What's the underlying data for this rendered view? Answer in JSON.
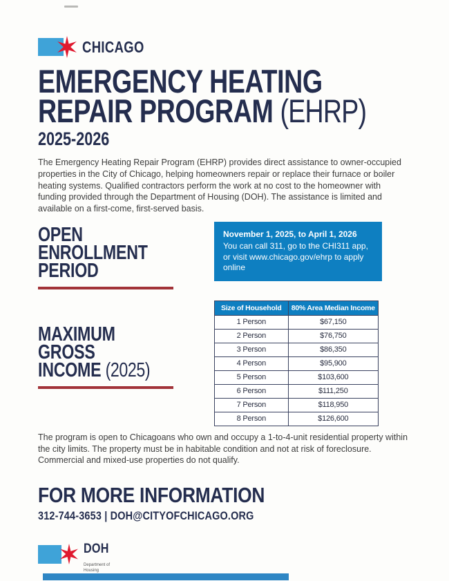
{
  "header": {
    "brand": "CHICAGO",
    "title_line1": "EMERGENCY HEATING",
    "title_line2_main": "REPAIR PROGRAM",
    "title_line2_suffix": "(EHRP)",
    "years": "2025-2026"
  },
  "intro": "The Emergency Heating Repair Program (EHRP) provides direct assistance to owner-occupied properties in the City of Chicago, helping homeowners repair or replace their furnace or boiler heating systems. Qualified contractors perform the work at no cost to the homeowner with funding provided through the Department of Housing (DOH).  The assistance is limited and available on a first-come, first-served basis.",
  "enrollment": {
    "heading_lines": [
      "OPEN",
      "ENROLLMENT",
      "PERIOD"
    ],
    "dates": "November 1, 2025, to April 1, 2026",
    "instructions": "You can call 311, go to the CHI311 app, or visit www.chicago.gov/ehrp to apply online"
  },
  "income": {
    "heading_line1": "MAXIMUM",
    "heading_line2": "GROSS",
    "heading_line3": "INCOME",
    "heading_suffix": "(2025)"
  },
  "income_table": {
    "headers": [
      "Size of Household",
      "80% Area Median Income"
    ],
    "rows": [
      [
        "1 Person",
        "$67,150"
      ],
      [
        "2 Person",
        "$76,750"
      ],
      [
        "3 Person",
        "$86,350"
      ],
      [
        "4 Person",
        "$95,900"
      ],
      [
        "5 Person",
        "$103,600"
      ],
      [
        "6 Person",
        "$111,250"
      ],
      [
        "7 Person",
        "$118,950"
      ],
      [
        "8 Person",
        "$126,600"
      ]
    ]
  },
  "eligibility": "The program is open to Chicagoans who own and occupy a 1-to-4-unit residential property within the city limits.  The property must be in habitable condition and not at risk of foreclosure. Commercial and mixed-use properties do not qualify.",
  "footer": {
    "heading": "FOR MORE INFORMATION",
    "contact": "312-744-3653 | DOH@CITYOFCHICAGO.ORG",
    "logo_text": "DOH",
    "logo_subtext_line1": "Department of",
    "logo_subtext_line2": "Housing"
  },
  "colors": {
    "navy": "#242d4e",
    "blue": "#0e7fc1",
    "light_blue": "#3fa3d8",
    "red": "#e0192f",
    "dark_red": "#a23339",
    "text": "#3b3b3b",
    "table_border": "#39415f",
    "footer_bar": "#2e86c4"
  }
}
